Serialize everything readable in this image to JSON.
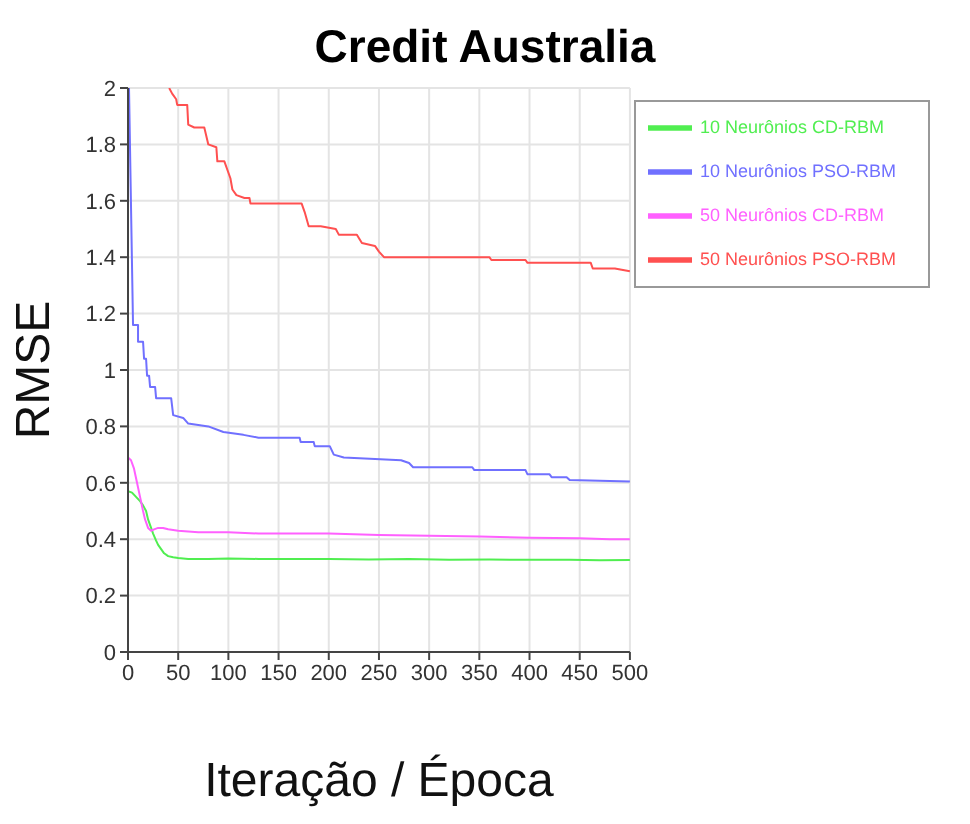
{
  "chart_data": {
    "type": "line",
    "title": "Credit Australia",
    "xlabel": "Iteração / Época",
    "ylabel": "RMSE",
    "xlim": [
      0,
      500
    ],
    "xticks": [
      0,
      50,
      100,
      150,
      200,
      250,
      300,
      350,
      400,
      450,
      500
    ],
    "ylim": [
      0,
      2
    ],
    "yticks": [
      0,
      0.2,
      0.4,
      0.6,
      0.8,
      1,
      1.2,
      1.4,
      1.6,
      1.8,
      2
    ],
    "grid": true,
    "legend": "top right",
    "marker": "none",
    "line_style": "solid",
    "series": [
      {
        "name": "10 Neurônios PSO-RBM",
        "color": "#7070ff",
        "x": [
          1,
          5,
          10,
          10,
          15,
          16,
          18,
          19,
          21,
          22,
          27,
          28,
          43,
          45,
          55,
          60,
          80,
          95,
          115,
          130,
          171,
          172,
          185,
          186,
          201,
          205,
          215,
          272,
          280,
          284,
          343,
          345,
          396,
          398,
          420,
          422,
          437,
          440,
          500
        ],
        "values": [
          2,
          1.16,
          1.16,
          1.1,
          1.1,
          1.04,
          1.04,
          0.98,
          0.98,
          0.94,
          0.94,
          0.9,
          0.9,
          0.84,
          0.83,
          0.81,
          0.8,
          0.78,
          0.77,
          0.76,
          0.76,
          0.745,
          0.745,
          0.73,
          0.73,
          0.7,
          0.69,
          0.68,
          0.67,
          0.655,
          0.655,
          0.645,
          0.645,
          0.63,
          0.63,
          0.62,
          0.62,
          0.61,
          0.605
        ]
      },
      {
        "name": "50 Neurônios PSO-RBM",
        "color": "#ff5050",
        "x": [
          41,
          44,
          48,
          49,
          59,
          60,
          66,
          76,
          80,
          88,
          89,
          96,
          102,
          104,
          108,
          116,
          121,
          122,
          173,
          176,
          180,
          192,
          207,
          210,
          228,
          233,
          246,
          250,
          255,
          360,
          362,
          396,
          398,
          461,
          463,
          485,
          500
        ],
        "values": [
          2,
          1.98,
          1.96,
          1.94,
          1.94,
          1.87,
          1.86,
          1.86,
          1.8,
          1.79,
          1.74,
          1.74,
          1.68,
          1.64,
          1.62,
          1.61,
          1.61,
          1.59,
          1.59,
          1.56,
          1.51,
          1.51,
          1.5,
          1.48,
          1.48,
          1.45,
          1.44,
          1.42,
          1.4,
          1.4,
          1.39,
          1.39,
          1.38,
          1.38,
          1.36,
          1.36,
          1.35
        ]
      },
      {
        "name": "10 Neurônios CD-RBM",
        "color": "#50ee50",
        "x": [
          0,
          4,
          8,
          12,
          15,
          18,
          20,
          23,
          25,
          28,
          30,
          33,
          36,
          40,
          45,
          50,
          60,
          80,
          100,
          130,
          160,
          200,
          240,
          280,
          320,
          360,
          400,
          440,
          470,
          500
        ],
        "values": [
          0.57,
          0.565,
          0.55,
          0.535,
          0.52,
          0.5,
          0.47,
          0.44,
          0.42,
          0.395,
          0.38,
          0.365,
          0.35,
          0.34,
          0.336,
          0.333,
          0.33,
          0.33,
          0.332,
          0.33,
          0.33,
          0.33,
          0.328,
          0.33,
          0.327,
          0.328,
          0.327,
          0.327,
          0.325,
          0.326
        ]
      },
      {
        "name": "50 Neurônios CD-RBM",
        "color": "#ff60ff",
        "x": [
          0,
          3,
          6,
          9,
          12,
          15,
          17,
          20,
          23,
          26,
          30,
          35,
          40,
          50,
          70,
          100,
          130,
          160,
          200,
          250,
          300,
          350,
          400,
          450,
          480,
          500
        ],
        "values": [
          0.69,
          0.68,
          0.65,
          0.6,
          0.55,
          0.5,
          0.47,
          0.44,
          0.43,
          0.435,
          0.44,
          0.44,
          0.435,
          0.43,
          0.425,
          0.425,
          0.42,
          0.42,
          0.42,
          0.415,
          0.412,
          0.41,
          0.405,
          0.403,
          0.4,
          0.4
        ]
      }
    ]
  }
}
